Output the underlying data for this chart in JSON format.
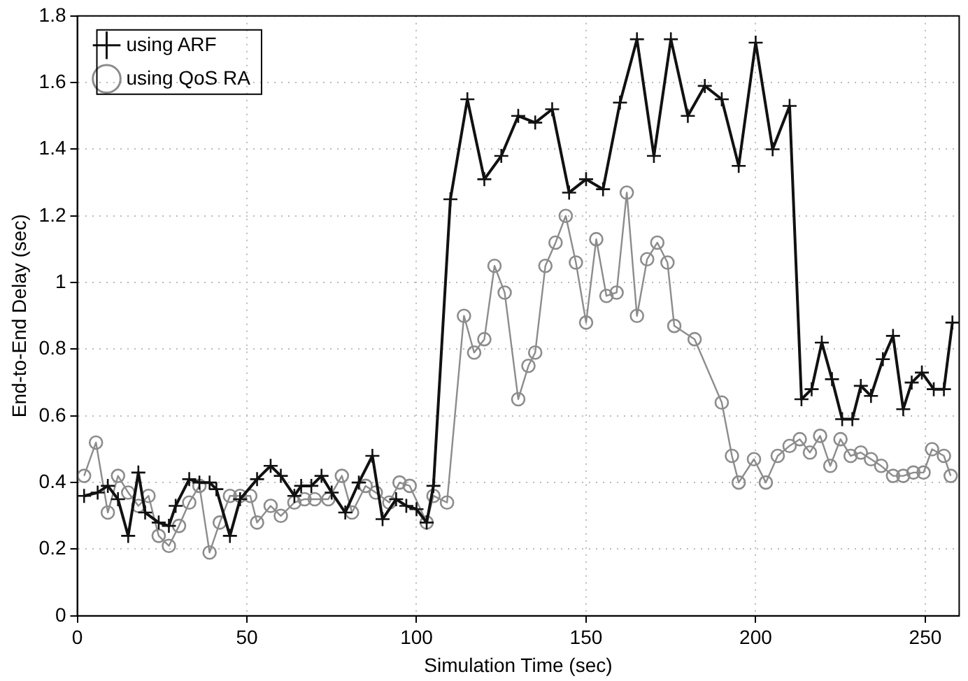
{
  "chart_data": {
    "type": "line",
    "xlabel": "Simulation Time (sec)",
    "ylabel": "End-to-End Delay (sec)",
    "xlim": [
      0,
      260
    ],
    "xticks": [
      0,
      50,
      100,
      150,
      200,
      250
    ],
    "ylim": [
      0,
      1.8
    ],
    "yticks": [
      0,
      0.2,
      0.4,
      0.6,
      0.8,
      1,
      1.2,
      1.4,
      1.6,
      1.8
    ],
    "grid": true,
    "legend": "top left",
    "line_style": "solid",
    "series": [
      {
        "name": "using ARF",
        "color": "#111111",
        "marker": "cross",
        "x": [
          2,
          6,
          9,
          12,
          15,
          18,
          20,
          24,
          27,
          29,
          33,
          36,
          39,
          41,
          45,
          48,
          53,
          57,
          60,
          64,
          66,
          69,
          72,
          75,
          79,
          83,
          87,
          90,
          94,
          97,
          100,
          103,
          105,
          110,
          115,
          120,
          125,
          130,
          135,
          140,
          145,
          150,
          155,
          160,
          165,
          170,
          175,
          180,
          185,
          190,
          195,
          200,
          205,
          210,
          213.5,
          216.5,
          219.5,
          222.5,
          225.5,
          228.5,
          231,
          234,
          237.5,
          240.5,
          243.5,
          246,
          249,
          252.5,
          255.5,
          258
        ],
        "values": [
          0.36,
          0.37,
          0.39,
          0.35,
          0.24,
          0.43,
          0.31,
          0.28,
          0.27,
          0.33,
          0.41,
          0.4,
          0.4,
          0.38,
          0.24,
          0.35,
          0.41,
          0.45,
          0.42,
          0.36,
          0.39,
          0.39,
          0.42,
          0.37,
          0.31,
          0.4,
          0.48,
          0.29,
          0.35,
          0.33,
          0.32,
          0.28,
          0.39,
          1.25,
          1.55,
          1.31,
          1.38,
          1.5,
          1.48,
          1.52,
          1.27,
          1.31,
          1.28,
          1.54,
          1.73,
          1.38,
          1.73,
          1.5,
          1.59,
          1.55,
          1.35,
          1.72,
          1.4,
          1.53,
          0.65,
          0.68,
          0.82,
          0.71,
          0.59,
          0.59,
          0.69,
          0.66,
          0.77,
          0.84,
          0.62,
          0.7,
          0.73,
          0.68,
          0.68,
          0.88
        ]
      },
      {
        "name": "using QoS RA",
        "color": "#8c8c8c",
        "marker": "circle",
        "x": [
          2,
          5.5,
          9,
          12,
          15,
          18,
          21,
          24,
          27,
          30,
          33,
          36,
          39,
          42,
          45,
          48,
          51,
          53,
          57,
          60,
          64,
          67,
          70,
          74,
          78,
          81,
          85,
          88,
          92,
          95,
          98,
          103,
          105,
          109,
          114,
          117,
          120,
          123,
          126,
          130,
          133,
          135,
          138,
          141,
          144,
          147,
          150,
          153,
          156,
          159,
          162,
          165,
          168,
          171,
          174,
          176,
          182,
          190,
          193,
          195,
          199.5,
          203,
          206.5,
          210,
          213,
          216,
          219,
          222,
          225,
          228,
          231,
          234,
          237,
          240.5,
          243.5,
          246.5,
          249.5,
          252,
          255.5,
          257.5
        ],
        "values": [
          0.42,
          0.52,
          0.31,
          0.42,
          0.37,
          0.33,
          0.36,
          0.24,
          0.21,
          0.27,
          0.34,
          0.39,
          0.19,
          0.28,
          0.36,
          0.36,
          0.36,
          0.28,
          0.33,
          0.3,
          0.34,
          0.35,
          0.35,
          0.35,
          0.42,
          0.31,
          0.39,
          0.37,
          0.34,
          0.4,
          0.39,
          0.28,
          0.36,
          0.34,
          0.9,
          0.79,
          0.83,
          1.05,
          0.97,
          0.65,
          0.75,
          0.79,
          1.05,
          1.12,
          1.2,
          1.06,
          0.88,
          1.13,
          0.96,
          0.97,
          1.27,
          0.9,
          1.07,
          1.12,
          1.06,
          0.87,
          0.83,
          0.64,
          0.48,
          0.4,
          0.47,
          0.4,
          0.48,
          0.51,
          0.53,
          0.49,
          0.54,
          0.45,
          0.53,
          0.48,
          0.49,
          0.47,
          0.45,
          0.42,
          0.42,
          0.43,
          0.43,
          0.5,
          0.48,
          0.42
        ]
      }
    ]
  }
}
